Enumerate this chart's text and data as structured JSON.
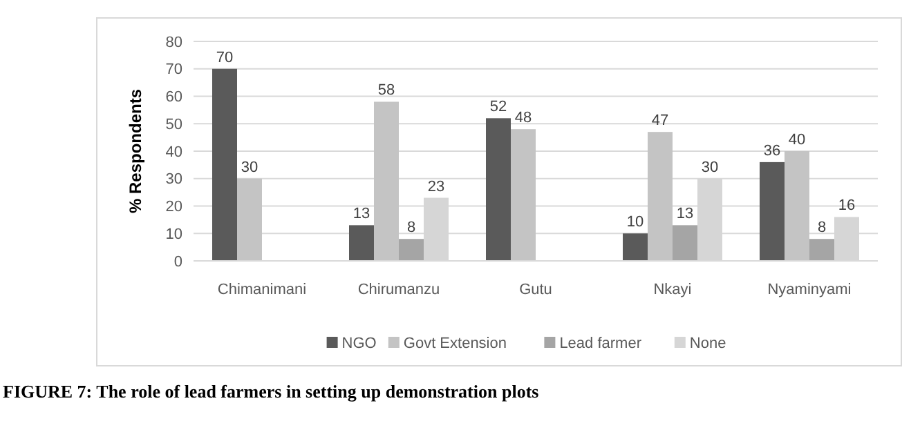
{
  "chart_data": {
    "type": "bar",
    "title": "FIGURE 7: The role of lead farmers in setting up demonstration plots",
    "ylabel": "% Respondents",
    "categories": [
      "Chimanimani",
      "Chirumanzu",
      "Gutu",
      "Nkayi",
      "Nyaminyami"
    ],
    "series": [
      {
        "name": "NGO",
        "color": "#5a5a5a",
        "values": [
          70,
          13,
          52,
          10,
          36
        ]
      },
      {
        "name": "Govt Extension",
        "color": "#c4c4c4",
        "values": [
          30,
          58,
          48,
          47,
          40
        ]
      },
      {
        "name": "Lead farmer",
        "color": "#a5a5a5",
        "values": [
          null,
          8,
          null,
          13,
          8
        ]
      },
      {
        "name": "None",
        "color": "#d6d6d6",
        "values": [
          null,
          23,
          null,
          30,
          16
        ]
      }
    ],
    "ylim": [
      0,
      80
    ],
    "yticks": [
      0,
      10,
      20,
      30,
      40,
      50,
      60,
      70,
      80
    ],
    "grid": "y",
    "legend": "bottom",
    "data_labels": true
  }
}
